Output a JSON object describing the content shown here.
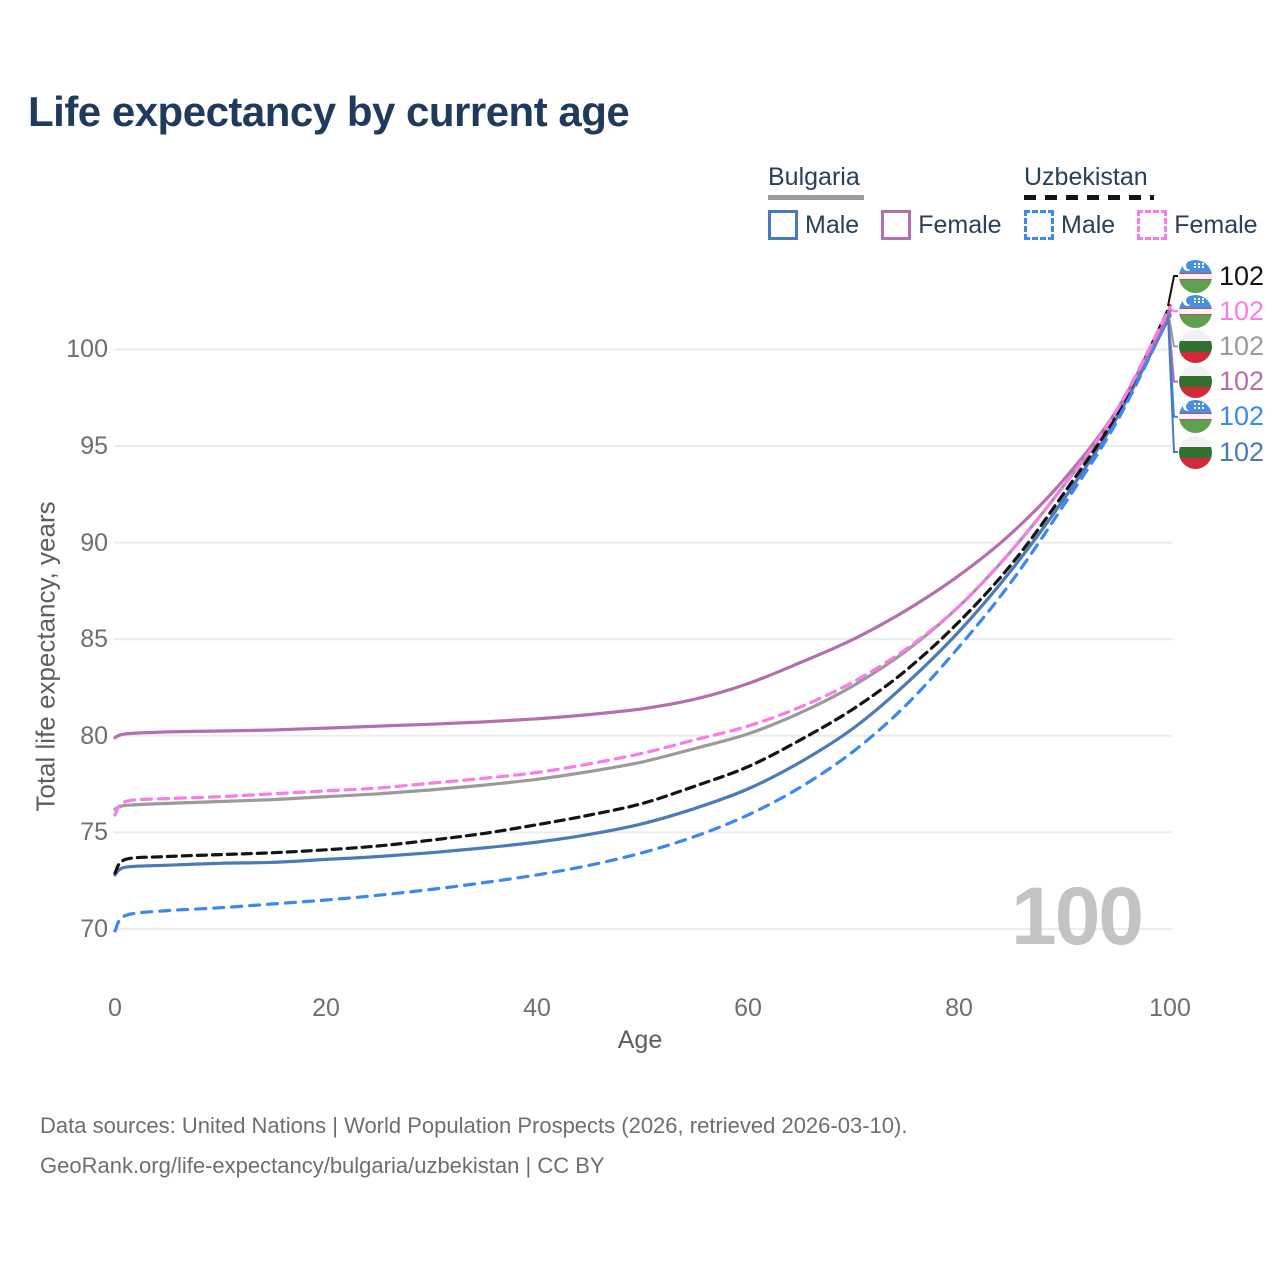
{
  "title": "Life expectancy by current age",
  "legend": {
    "groups": [
      {
        "label": "Bulgaria",
        "line_style": "solid",
        "line_color": "#9b9b9b"
      },
      {
        "label": "Uzbekistan",
        "line_style": "dashed",
        "line_color": "#141414"
      }
    ],
    "items": [
      {
        "country": "Bulgaria",
        "label": "Male",
        "box_style": "solid",
        "color": "#4a7ab8"
      },
      {
        "country": "Bulgaria",
        "label": "Female",
        "box_style": "solid",
        "color": "#b470ae"
      },
      {
        "country": "Uzbekistan",
        "label": "Male",
        "box_style": "dashed",
        "color": "#3d87f5"
      },
      {
        "country": "Uzbekistan",
        "label": "Female",
        "box_style": "dashed",
        "color": "#fb7ce4"
      }
    ]
  },
  "watermark": "100",
  "footer": {
    "line1": "Data sources: United Nations | World Population Prospects (2026, retrieved 2026-03-10).",
    "line2": "GeoRank.org/life-expectancy/bulgaria/uzbekistan | CC BY"
  },
  "chart_data": {
    "type": "line",
    "title": "Life expectancy by current age",
    "xlabel": "Age",
    "ylabel": "Total life expectancy, years",
    "x_ticks": [
      0,
      20,
      40,
      60,
      80,
      100
    ],
    "y_ticks": [
      70,
      75,
      80,
      85,
      90,
      95,
      100
    ],
    "xlim": [
      0,
      100
    ],
    "ylim": [
      68.5,
      103
    ],
    "grid": true,
    "legend_position": "top-right",
    "x": [
      0,
      1,
      5,
      10,
      15,
      20,
      25,
      30,
      35,
      40,
      45,
      50,
      55,
      60,
      65,
      70,
      75,
      80,
      85,
      90,
      95,
      100
    ],
    "series": [
      {
        "key": "bg_male",
        "name": "Bulgaria Male",
        "country": "bulgaria",
        "sex": "male",
        "color": "#4a7ab8",
        "dash": "",
        "end_label": "102",
        "values": [
          72.8,
          73.2,
          73.3,
          73.4,
          73.45,
          73.6,
          73.75,
          73.95,
          74.2,
          74.5,
          74.9,
          75.45,
          76.25,
          77.25,
          78.65,
          80.4,
          82.7,
          85.4,
          88.6,
          92.3,
          96.5,
          101.75
        ]
      },
      {
        "key": "bg_total",
        "name": "Bulgaria",
        "country": "bulgaria",
        "sex": "both",
        "color": "#9b9b9b",
        "dash": "",
        "end_label": "102",
        "values": [
          76.2,
          76.4,
          76.5,
          76.6,
          76.7,
          76.85,
          77.0,
          77.2,
          77.45,
          77.75,
          78.15,
          78.65,
          79.35,
          80.1,
          81.2,
          82.6,
          84.4,
          86.7,
          89.6,
          93.0,
          96.8,
          102.0
        ]
      },
      {
        "key": "uz_male",
        "name": "Uzbekistan Male",
        "country": "uzbekistan",
        "sex": "male",
        "color": "#3d87f5",
        "dash": "10 8",
        "end_label": "102",
        "values": [
          69.9,
          70.7,
          70.95,
          71.1,
          71.3,
          71.5,
          71.75,
          72.05,
          72.4,
          72.8,
          73.3,
          73.95,
          74.8,
          75.9,
          77.35,
          79.2,
          81.6,
          84.6,
          88.0,
          92.0,
          96.3,
          101.8
        ]
      },
      {
        "key": "uz_total",
        "name": "Uzbekistan",
        "country": "uzbekistan",
        "sex": "both",
        "color": "#141414",
        "dash": "9 6",
        "end_label": "102",
        "values": [
          72.9,
          73.6,
          73.75,
          73.85,
          73.95,
          74.1,
          74.3,
          74.6,
          74.95,
          75.4,
          75.9,
          76.5,
          77.4,
          78.4,
          79.8,
          81.4,
          83.4,
          85.9,
          88.9,
          92.6,
          96.7,
          102.25
        ]
      },
      {
        "key": "bg_female",
        "name": "Bulgaria Female",
        "country": "bulgaria",
        "sex": "female",
        "color": "#b470ae",
        "dash": "",
        "end_label": "102",
        "values": [
          79.9,
          80.1,
          80.2,
          80.25,
          80.3,
          80.4,
          80.5,
          80.6,
          80.72,
          80.88,
          81.1,
          81.4,
          81.9,
          82.7,
          83.8,
          85.0,
          86.5,
          88.3,
          90.5,
          93.3,
          96.9,
          101.95
        ]
      },
      {
        "key": "uz_female",
        "name": "Uzbekistan Female",
        "country": "uzbekistan",
        "sex": "female",
        "color": "#fb7ce4",
        "dash": "10 7",
        "end_label": "102",
        "values": [
          75.9,
          76.6,
          76.75,
          76.85,
          77.0,
          77.15,
          77.3,
          77.55,
          77.8,
          78.1,
          78.55,
          79.1,
          79.8,
          80.5,
          81.5,
          82.8,
          84.5,
          86.7,
          89.6,
          93.0,
          96.9,
          102.2
        ]
      }
    ]
  }
}
